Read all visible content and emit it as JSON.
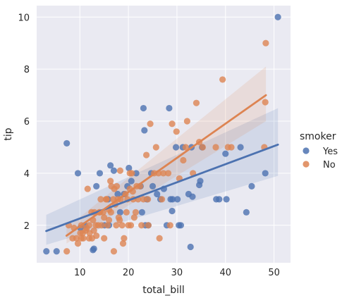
{
  "chart_data": {
    "type": "scatter",
    "title": "",
    "xlabel": "total_bill",
    "ylabel": "tip",
    "xlim": [
      1.1,
      53.4
    ],
    "ylim": [
      0.56,
      10.44
    ],
    "xticks": [
      10,
      20,
      30,
      40,
      50
    ],
    "yticks": [
      2,
      4,
      6,
      8,
      10
    ],
    "grid": true,
    "legend": {
      "title": "smoker",
      "placement": "right"
    },
    "series": [
      {
        "name": "Yes",
        "color": "#4c72b0",
        "fit": {
          "x": [
            3.07,
            50.81
          ],
          "y": [
            1.78,
            5.1
          ]
        },
        "ci_upper": [
          2.4,
          6.5
        ],
        "ci_lower": [
          1.25,
          3.9
        ],
        "points": [
          [
            3.1,
            1.0
          ],
          [
            5.2,
            1.0
          ],
          [
            7.3,
            5.15
          ],
          [
            9.6,
            4.0
          ],
          [
            10.1,
            1.9
          ],
          [
            11.0,
            2.0
          ],
          [
            12.7,
            1.05
          ],
          [
            12.9,
            1.1
          ],
          [
            13.4,
            3.5
          ],
          [
            14.1,
            4.0
          ],
          [
            15.1,
            2.0
          ],
          [
            15.8,
            3.0
          ],
          [
            16.3,
            4.3
          ],
          [
            16.0,
            2.0
          ],
          [
            17.0,
            4.1
          ],
          [
            17.8,
            3.2
          ],
          [
            18.3,
            2.5
          ],
          [
            19.1,
            3.2
          ],
          [
            19.8,
            3.5
          ],
          [
            20.1,
            4.2
          ],
          [
            20.6,
            3.7
          ],
          [
            21.6,
            4.0
          ],
          [
            22.5,
            3.5
          ],
          [
            22.8,
            2.5
          ],
          [
            23.1,
            6.5
          ],
          [
            23.3,
            5.65
          ],
          [
            23.8,
            3.0
          ],
          [
            23.5,
            2.0
          ],
          [
            24.1,
            2.0
          ],
          [
            25.0,
            3.5
          ],
          [
            25.9,
            3.2
          ],
          [
            26.6,
            3.0
          ],
          [
            27.3,
            3.4
          ],
          [
            27.9,
            2.0
          ],
          [
            28.4,
            6.5
          ],
          [
            28.7,
            3.0
          ],
          [
            29.0,
            2.55
          ],
          [
            29.1,
            3.0
          ],
          [
            30.1,
            3.0
          ],
          [
            30.4,
            2.0
          ],
          [
            30.8,
            2.0
          ],
          [
            32.4,
            3.2
          ],
          [
            32.8,
            1.17
          ],
          [
            33.2,
            3.1
          ],
          [
            34.6,
            3.55
          ],
          [
            34.8,
            3.7
          ],
          [
            38.1,
            3.0
          ],
          [
            38.7,
            3.0
          ],
          [
            40.2,
            3.0
          ],
          [
            43.1,
            5.0
          ],
          [
            44.3,
            2.5
          ],
          [
            45.4,
            3.5
          ],
          [
            48.2,
            4.0
          ],
          [
            50.8,
            10.0
          ],
          [
            29.8,
            5.0
          ],
          [
            31.2,
            5.0
          ],
          [
            33.0,
            5.0
          ],
          [
            40.0,
            4.75
          ],
          [
            35.2,
            5.0
          ],
          [
            24.7,
            4.0
          ]
        ]
      },
      {
        "name": "No",
        "color": "#dd8452",
        "fit": {
          "x": [
            7.25,
            48.33
          ],
          "y": [
            1.6,
            7.0
          ]
        },
        "ci_upper": [
          1.9,
          8.1
        ],
        "ci_lower": [
          1.3,
          6.0
        ],
        "points": [
          [
            7.3,
            1.0
          ],
          [
            7.7,
            2.0
          ],
          [
            8.5,
            1.5
          ],
          [
            8.8,
            1.9
          ],
          [
            9.3,
            1.5
          ],
          [
            9.6,
            1.3
          ],
          [
            10.1,
            1.7
          ],
          [
            10.3,
            1.5
          ],
          [
            10.3,
            2.0
          ],
          [
            10.6,
            1.7
          ],
          [
            10.7,
            1.5
          ],
          [
            11.2,
            1.8
          ],
          [
            11.4,
            1.9
          ],
          [
            11.6,
            3.4
          ],
          [
            11.9,
            2.0
          ],
          [
            12.0,
            1.7
          ],
          [
            12.4,
            2.5
          ],
          [
            12.5,
            1.5
          ],
          [
            12.7,
            2.2
          ],
          [
            12.9,
            1.8
          ],
          [
            13.0,
            2.5
          ],
          [
            13.3,
            2.0
          ],
          [
            13.4,
            1.6
          ],
          [
            13.8,
            2.0
          ],
          [
            14.1,
            2.5
          ],
          [
            14.3,
            3.0
          ],
          [
            14.5,
            2.0
          ],
          [
            14.8,
            2.5
          ],
          [
            15.0,
            2.3
          ],
          [
            15.0,
            1.5
          ],
          [
            15.4,
            3.0
          ],
          [
            15.5,
            3.0
          ],
          [
            15.7,
            2.0
          ],
          [
            16.0,
            2.6
          ],
          [
            16.0,
            2.2
          ],
          [
            16.3,
            3.7
          ],
          [
            16.5,
            3.5
          ],
          [
            16.9,
            3.0
          ],
          [
            17.0,
            1.0
          ],
          [
            17.1,
            3.4
          ],
          [
            17.3,
            2.8
          ],
          [
            17.5,
            2.0
          ],
          [
            17.6,
            3.5
          ],
          [
            17.8,
            3.0
          ],
          [
            18.0,
            2.3
          ],
          [
            18.2,
            2.2
          ],
          [
            18.3,
            4.1
          ],
          [
            18.4,
            3.0
          ],
          [
            18.7,
            2.0
          ],
          [
            18.9,
            1.3
          ],
          [
            19.1,
            1.5
          ],
          [
            19.4,
            3.2
          ],
          [
            19.6,
            2.5
          ],
          [
            19.8,
            3.0
          ],
          [
            20.0,
            2.0
          ],
          [
            20.3,
            3.4
          ],
          [
            20.5,
            2.0
          ],
          [
            20.7,
            4.0
          ],
          [
            20.9,
            3.3
          ],
          [
            21.0,
            3.0
          ],
          [
            21.2,
            2.3
          ],
          [
            21.5,
            2.5
          ],
          [
            21.7,
            3.5
          ],
          [
            22.0,
            3.0
          ],
          [
            22.4,
            3.5
          ],
          [
            22.7,
            2.0
          ],
          [
            23.1,
            3.0
          ],
          [
            23.7,
            4.7
          ],
          [
            24.0,
            3.0
          ],
          [
            24.1,
            2.0
          ],
          [
            24.5,
            5.9
          ],
          [
            25.3,
            4.0
          ],
          [
            25.7,
            5.0
          ],
          [
            26.2,
            4.0
          ],
          [
            26.4,
            1.5
          ],
          [
            26.9,
            3.0
          ],
          [
            27.2,
            4.0
          ],
          [
            28.2,
            4.0
          ],
          [
            28.6,
            2.0
          ],
          [
            29.0,
            5.9
          ],
          [
            29.9,
            5.6
          ],
          [
            30.5,
            3.8
          ],
          [
            31.3,
            4.5
          ],
          [
            31.8,
            5.0
          ],
          [
            32.1,
            6.0
          ],
          [
            33.3,
            4.0
          ],
          [
            34.0,
            6.7
          ],
          [
            34.6,
            5.2
          ],
          [
            35.3,
            5.0
          ],
          [
            38.0,
            5.0
          ],
          [
            39.4,
            7.6
          ],
          [
            41.2,
            5.0
          ],
          [
            48.3,
            9.0
          ],
          [
            48.2,
            6.73
          ],
          [
            48.0,
            5.0
          ],
          [
            40.5,
            5.0
          ],
          [
            20.3,
            4.0
          ],
          [
            14.0,
            2.5
          ],
          [
            11.9,
            1.5
          ],
          [
            16.4,
            2.5
          ]
        ]
      }
    ]
  }
}
